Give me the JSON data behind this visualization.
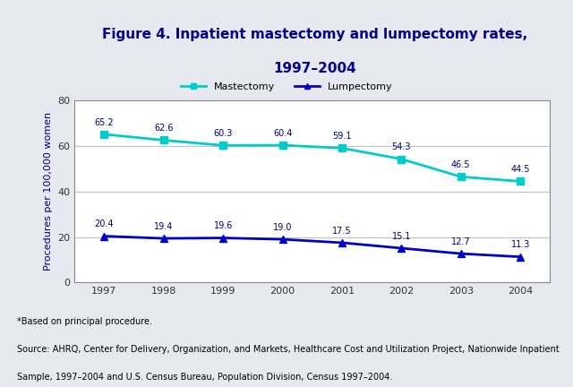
{
  "years": [
    1997,
    1998,
    1999,
    2000,
    2001,
    2002,
    2003,
    2004
  ],
  "mastectomy": [
    65.2,
    62.6,
    60.3,
    60.4,
    59.1,
    54.3,
    46.5,
    44.5
  ],
  "lumpectomy": [
    20.4,
    19.4,
    19.6,
    19.0,
    17.5,
    15.1,
    12.7,
    11.3
  ],
  "mastectomy_color": "#00CCCC",
  "lumpectomy_color": "#0000CC",
  "title_line1": "Figure 4. Inpatient mastectomy and lumpectomy rates,",
  "title_line2": "1997–2004",
  "ylabel": "Procedures per 100,000 women",
  "ylim": [
    0,
    80
  ],
  "yticks": [
    0,
    20,
    40,
    60,
    80
  ],
  "bg_color": "#E8E8F0",
  "plot_bg_color": "#FFFFFF",
  "header_bg_color": "#DCDCEC",
  "footer_text1": "*Based on principal procedure.",
  "footer_text2": "Source: AHRQ, Center for Delivery, Organization, and Markets, Healthcare Cost and Utilization Project, Nationwide Inpatient",
  "footer_text3": "Sample, 1997–2004 and U.S. Census Bureau, Population Division, Census 1997–2004.",
  "legend_mastectomy": "Mastectomy",
  "legend_lumpectomy": "Lumpectomy",
  "title_color": "#00008B",
  "axis_label_color": "#000080",
  "annotation_color": "#000080",
  "grid_color": "#C0C0C0"
}
